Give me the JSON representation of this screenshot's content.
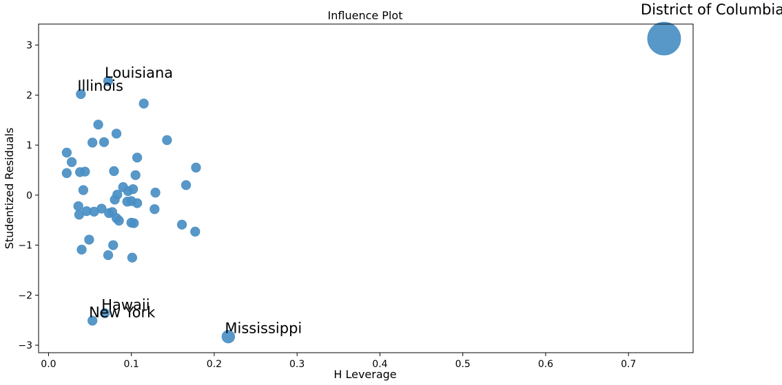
{
  "chart_data": {
    "type": "scatter",
    "title": "Influence Plot",
    "xlabel": "H Leverage",
    "ylabel": "Studentized Residuals",
    "xlim": [
      -0.012,
      0.778
    ],
    "ylim": [
      -3.15,
      3.42
    ],
    "xticks": [
      0.0,
      0.1,
      0.2,
      0.3,
      0.4,
      0.5,
      0.6,
      0.7
    ],
    "xtick_labels": [
      "0.0",
      "0.1",
      "0.2",
      "0.3",
      "0.4",
      "0.5",
      "0.6",
      "0.7"
    ],
    "yticks": [
      -3,
      -2,
      -1,
      0,
      1,
      2,
      3
    ],
    "ytick_labels": [
      "−3",
      "−2",
      "−1",
      "0",
      "1",
      "2",
      "3"
    ],
    "grid": false,
    "marker_color": "#4a8fc4",
    "points": [
      {
        "x": 0.743,
        "y": 3.13,
        "s": 1.0
      },
      {
        "x": 0.072,
        "y": 2.28,
        "s": 0.2
      },
      {
        "x": 0.039,
        "y": 2.02,
        "s": 0.2
      },
      {
        "x": 0.115,
        "y": 1.83,
        "s": 0.2
      },
      {
        "x": 0.06,
        "y": 1.41,
        "s": 0.2
      },
      {
        "x": 0.082,
        "y": 1.23,
        "s": 0.2
      },
      {
        "x": 0.143,
        "y": 1.1,
        "s": 0.2
      },
      {
        "x": 0.053,
        "y": 1.05,
        "s": 0.2
      },
      {
        "x": 0.067,
        "y": 1.06,
        "s": 0.2
      },
      {
        "x": 0.022,
        "y": 0.85,
        "s": 0.2
      },
      {
        "x": 0.107,
        "y": 0.75,
        "s": 0.2
      },
      {
        "x": 0.028,
        "y": 0.66,
        "s": 0.2
      },
      {
        "x": 0.178,
        "y": 0.55,
        "s": 0.2
      },
      {
        "x": 0.079,
        "y": 0.48,
        "s": 0.2
      },
      {
        "x": 0.022,
        "y": 0.44,
        "s": 0.2
      },
      {
        "x": 0.038,
        "y": 0.46,
        "s": 0.2
      },
      {
        "x": 0.044,
        "y": 0.47,
        "s": 0.2
      },
      {
        "x": 0.105,
        "y": 0.4,
        "s": 0.2
      },
      {
        "x": 0.166,
        "y": 0.2,
        "s": 0.2
      },
      {
        "x": 0.09,
        "y": 0.16,
        "s": 0.2
      },
      {
        "x": 0.102,
        "y": 0.12,
        "s": 0.2
      },
      {
        "x": 0.042,
        "y": 0.1,
        "s": 0.2
      },
      {
        "x": 0.096,
        "y": 0.08,
        "s": 0.2
      },
      {
        "x": 0.129,
        "y": 0.05,
        "s": 0.2
      },
      {
        "x": 0.083,
        "y": 0.01,
        "s": 0.2
      },
      {
        "x": 0.08,
        "y": -0.09,
        "s": 0.2
      },
      {
        "x": 0.095,
        "y": -0.13,
        "s": 0.2
      },
      {
        "x": 0.1,
        "y": -0.12,
        "s": 0.2
      },
      {
        "x": 0.107,
        "y": -0.16,
        "s": 0.2
      },
      {
        "x": 0.036,
        "y": -0.22,
        "s": 0.2
      },
      {
        "x": 0.064,
        "y": -0.27,
        "s": 0.2
      },
      {
        "x": 0.128,
        "y": -0.28,
        "s": 0.2
      },
      {
        "x": 0.046,
        "y": -0.32,
        "s": 0.2
      },
      {
        "x": 0.055,
        "y": -0.33,
        "s": 0.2
      },
      {
        "x": 0.077,
        "y": -0.34,
        "s": 0.2
      },
      {
        "x": 0.073,
        "y": -0.36,
        "s": 0.2
      },
      {
        "x": 0.037,
        "y": -0.39,
        "s": 0.2
      },
      {
        "x": 0.082,
        "y": -0.46,
        "s": 0.2
      },
      {
        "x": 0.085,
        "y": -0.51,
        "s": 0.2
      },
      {
        "x": 0.1,
        "y": -0.55,
        "s": 0.2
      },
      {
        "x": 0.103,
        "y": -0.56,
        "s": 0.2
      },
      {
        "x": 0.161,
        "y": -0.59,
        "s": 0.2
      },
      {
        "x": 0.177,
        "y": -0.73,
        "s": 0.2
      },
      {
        "x": 0.049,
        "y": -0.89,
        "s": 0.2
      },
      {
        "x": 0.078,
        "y": -1.0,
        "s": 0.2
      },
      {
        "x": 0.04,
        "y": -1.09,
        "s": 0.2
      },
      {
        "x": 0.072,
        "y": -1.2,
        "s": 0.2
      },
      {
        "x": 0.101,
        "y": -1.25,
        "s": 0.2
      },
      {
        "x": 0.068,
        "y": -2.36,
        "s": 0.2
      },
      {
        "x": 0.053,
        "y": -2.51,
        "s": 0.2
      },
      {
        "x": 0.217,
        "y": -2.83,
        "s": 0.38
      }
    ],
    "annotations": [
      {
        "text": "District of Columbia",
        "x": 0.743,
        "y": 3.13
      },
      {
        "text": "Louisiana",
        "x": 0.072,
        "y": 2.28
      },
      {
        "text": "Illinois",
        "x": 0.039,
        "y": 2.02
      },
      {
        "text": "Hawaii",
        "x": 0.068,
        "y": -2.36
      },
      {
        "text": "New York",
        "x": 0.053,
        "y": -2.51
      },
      {
        "text": "Mississippi",
        "x": 0.217,
        "y": -2.83
      }
    ]
  }
}
